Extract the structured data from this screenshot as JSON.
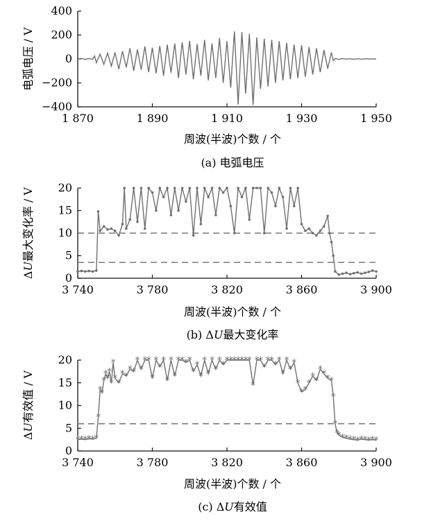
{
  "chart_data": [
    {
      "type": "line",
      "caption_prefix": "(a)",
      "caption_text": "电弧电压",
      "ylabel": "电弧电压 / V",
      "xlabel": "周波(半波)个数 / 个",
      "xlim": [
        1870,
        1950
      ],
      "ylim": [
        -400,
        400
      ],
      "xticks": [
        1870,
        1890,
        1910,
        1930,
        1950
      ],
      "xtick_labels": [
        "1 870",
        "1 890",
        "1 910",
        "1 930",
        "1 950"
      ],
      "yticks": [
        -400,
        -200,
        0,
        200,
        400
      ],
      "ytick_labels": [
        "−400",
        "−200",
        "0",
        "200",
        "400"
      ],
      "line_color": "#6f6f6f",
      "series": [
        {
          "x": [
            1870,
            1871,
            1872,
            1873,
            1874,
            1874.5,
            1875,
            1876,
            1877,
            1878,
            1879,
            1880,
            1881,
            1882,
            1883,
            1884,
            1885,
            1886,
            1887,
            1888,
            1889,
            1890,
            1891,
            1892,
            1893,
            1894,
            1895,
            1896,
            1897,
            1898,
            1899,
            1900,
            1901,
            1902,
            1903,
            1904,
            1905,
            1906,
            1907,
            1908,
            1909,
            1910,
            1911,
            1912,
            1913,
            1914,
            1915,
            1916,
            1917,
            1918,
            1919,
            1920,
            1921,
            1922,
            1923,
            1924,
            1925,
            1926,
            1927,
            1928,
            1929,
            1930,
            1931,
            1932,
            1933,
            1934,
            1935,
            1936,
            1937,
            1938,
            1938.5,
            1939,
            1940,
            1941,
            1942,
            1943,
            1944,
            1945,
            1946,
            1947,
            1948,
            1949,
            1950
          ],
          "y": [
            0,
            4,
            -3,
            3,
            -2,
            25,
            -30,
            40,
            -45,
            50,
            -60,
            55,
            -85,
            65,
            -70,
            90,
            -100,
            80,
            -90,
            105,
            -110,
            95,
            -120,
            110,
            -140,
            120,
            -115,
            130,
            -160,
            140,
            -130,
            150,
            -170,
            125,
            -140,
            160,
            -180,
            130,
            -160,
            175,
            -200,
            150,
            -240,
            230,
            -380,
            225,
            -290,
            210,
            -385,
            180,
            -250,
            170,
            -230,
            160,
            -200,
            150,
            -180,
            135,
            -170,
            120,
            -160,
            115,
            -150,
            100,
            -130,
            90,
            -110,
            75,
            -80,
            55,
            -15,
            4,
            -3,
            3,
            -2,
            2,
            -2,
            2,
            -2,
            2,
            -1,
            1,
            0
          ]
        }
      ]
    },
    {
      "type": "line",
      "caption_prefix": "(b)",
      "caption_text": "ΔU最大变化率",
      "ylabel": "ΔU最大变化率 / V",
      "xlabel": "周波(半波)个数 / 个",
      "xlim": [
        3740,
        3900
      ],
      "ylim": [
        0,
        20
      ],
      "xticks": [
        3740,
        3780,
        3820,
        3860,
        3900
      ],
      "xtick_labels": [
        "3 740",
        "3 780",
        "3 820",
        "3 860",
        "3 900"
      ],
      "yticks": [
        0,
        5,
        10,
        15,
        20
      ],
      "ytick_labels": [
        "0",
        "5",
        "10",
        "15",
        "20"
      ],
      "thresholds": [
        10,
        3.5
      ],
      "line_color": "#6f6f6f",
      "series": [
        {
          "x": [
            3740,
            3742,
            3744,
            3746,
            3748,
            3750,
            3751,
            3752,
            3754,
            3756,
            3758,
            3760,
            3762,
            3764,
            3765,
            3766,
            3768,
            3770,
            3772,
            3774,
            3776,
            3778,
            3780,
            3782,
            3784,
            3786,
            3788,
            3790,
            3792,
            3794,
            3796,
            3798,
            3800,
            3802,
            3804,
            3806,
            3808,
            3810,
            3812,
            3814,
            3816,
            3818,
            3820,
            3822,
            3824,
            3826,
            3828,
            3830,
            3832,
            3834,
            3836,
            3838,
            3840,
            3842,
            3844,
            3846,
            3848,
            3850,
            3852,
            3854,
            3856,
            3858,
            3860,
            3862,
            3864,
            3866,
            3868,
            3870,
            3872,
            3874,
            3875,
            3876,
            3877,
            3878,
            3880,
            3882,
            3884,
            3886,
            3888,
            3890,
            3892,
            3894,
            3896,
            3898,
            3900
          ],
          "y": [
            1.5,
            1.6,
            1.5,
            1.6,
            1.5,
            1.7,
            14.8,
            10.5,
            11.5,
            10.8,
            11.0,
            10.5,
            9.5,
            12.0,
            20,
            11,
            13,
            20,
            12.5,
            20,
            11,
            20,
            19,
            15,
            20,
            18,
            20,
            14,
            20,
            15,
            20,
            17,
            20,
            9.5,
            20,
            12,
            20,
            18,
            20,
            14,
            20,
            19,
            20,
            16,
            10,
            20,
            18,
            20,
            13,
            20,
            20,
            20,
            10,
            20,
            19,
            16,
            20,
            18,
            11,
            20,
            16,
            20,
            12,
            10.5,
            11,
            10,
            9.5,
            10.5,
            11.5,
            13.8,
            10.0,
            8.0,
            5.0,
            1.5,
            0.8,
            1.0,
            1.2,
            0.9,
            1.1,
            1.3,
            1.0,
            1.2,
            1.4,
            1.7,
            1.5
          ]
        }
      ]
    },
    {
      "type": "line",
      "caption_prefix": "(c)",
      "caption_text": "ΔU有效值",
      "ylabel": "ΔU有效值 / V",
      "xlabel": "周波(半波)个数 / 个",
      "xlim": [
        3740,
        3900
      ],
      "ylim": [
        0,
        20
      ],
      "xticks": [
        3740,
        3780,
        3820,
        3860,
        3900
      ],
      "xtick_labels": [
        "3 740",
        "3 780",
        "3 820",
        "3 860",
        "3 900"
      ],
      "yticks": [
        0,
        5,
        10,
        15,
        20
      ],
      "ytick_labels": [
        "0",
        "5",
        "10",
        "15",
        "20"
      ],
      "thresholds": [
        6
      ],
      "line_color": "#6f6f6f",
      "series": [
        {
          "x": [
            3740,
            3742,
            3744,
            3746,
            3748,
            3750,
            3751,
            3752,
            3753,
            3754,
            3755,
            3756,
            3757,
            3758,
            3759,
            3760,
            3762,
            3764,
            3766,
            3768,
            3770,
            3772,
            3774,
            3776,
            3778,
            3780,
            3782,
            3784,
            3786,
            3788,
            3790,
            3792,
            3794,
            3796,
            3798,
            3800,
            3802,
            3804,
            3806,
            3808,
            3810,
            3812,
            3814,
            3816,
            3818,
            3820,
            3822,
            3824,
            3826,
            3828,
            3830,
            3832,
            3834,
            3836,
            3838,
            3840,
            3842,
            3844,
            3846,
            3848,
            3850,
            3852,
            3854,
            3856,
            3858,
            3860,
            3862,
            3864,
            3866,
            3868,
            3870,
            3872,
            3874,
            3876,
            3877,
            3878,
            3879,
            3880,
            3882,
            3884,
            3886,
            3888,
            3890,
            3892,
            3894,
            3896,
            3898,
            3900
          ],
          "y": [
            2.5,
            2.6,
            2.5,
            2.7,
            2.6,
            2.8,
            7.5,
            13.5,
            12.8,
            15.5,
            17.0,
            16.0,
            17.5,
            15.0,
            19.5,
            16.0,
            15.0,
            17.0,
            16.5,
            18.0,
            17.5,
            20,
            18.0,
            20,
            20,
            16.0,
            20,
            18.5,
            20,
            15.5,
            20,
            16.5,
            20,
            20,
            19.5,
            20,
            17.5,
            19.0,
            16.5,
            20,
            17.0,
            20,
            18.0,
            20,
            19.0,
            20,
            20,
            20,
            20,
            20,
            20,
            20,
            14.5,
            20,
            20,
            18.5,
            20,
            20,
            19.0,
            20,
            17.0,
            20,
            18.0,
            19.5,
            15.0,
            13.0,
            13.5,
            15.0,
            16.5,
            15.5,
            18.0,
            17.0,
            16.0,
            15.5,
            12.0,
            6.0,
            4.0,
            3.5,
            3.0,
            2.8,
            2.6,
            2.5,
            2.4,
            2.6,
            2.5,
            2.4,
            2.5,
            2.4
          ]
        }
      ]
    }
  ]
}
